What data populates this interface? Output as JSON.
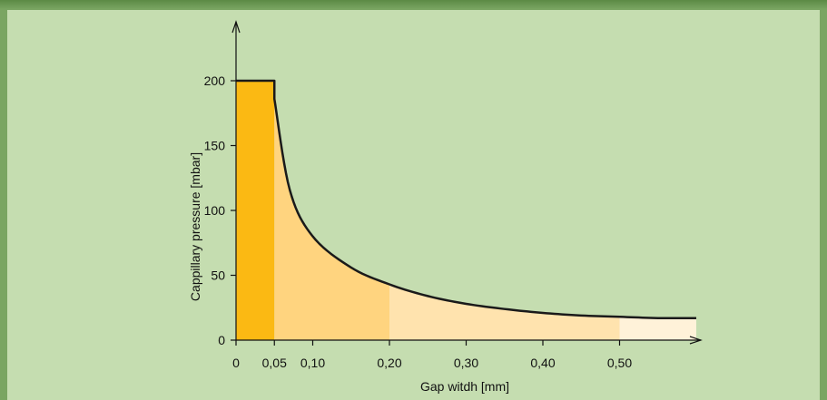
{
  "chart_data": {
    "type": "area",
    "title": "",
    "xlabel": "Gap witdh [mm]",
    "ylabel": "Cappillary pressure [mbar]",
    "xlim": [
      0,
      0.6
    ],
    "ylim": [
      0,
      200
    ],
    "x_ticks": [
      {
        "value": 0,
        "label": "0"
      },
      {
        "value": 0.05,
        "label": "0,05"
      },
      {
        "value": 0.1,
        "label": "0,10"
      },
      {
        "value": 0.2,
        "label": "0,20"
      },
      {
        "value": 0.3,
        "label": "0,30"
      },
      {
        "value": 0.4,
        "label": "0,40"
      },
      {
        "value": 0.5,
        "label": "0,50"
      }
    ],
    "y_ticks": [
      {
        "value": 0,
        "label": "0"
      },
      {
        "value": 50,
        "label": "50"
      },
      {
        "value": 100,
        "label": "100"
      },
      {
        "value": 150,
        "label": "150"
      },
      {
        "value": 200,
        "label": "200"
      }
    ],
    "points": [
      {
        "x": 0,
        "y": 200
      },
      {
        "x": 0.05,
        "y": 200
      },
      {
        "x": 0.05,
        "y": 186
      },
      {
        "x": 0.07,
        "y": 116
      },
      {
        "x": 0.1,
        "y": 80
      },
      {
        "x": 0.15,
        "y": 56
      },
      {
        "x": 0.2,
        "y": 43
      },
      {
        "x": 0.25,
        "y": 34
      },
      {
        "x": 0.3,
        "y": 28
      },
      {
        "x": 0.35,
        "y": 24
      },
      {
        "x": 0.4,
        "y": 21
      },
      {
        "x": 0.45,
        "y": 19
      },
      {
        "x": 0.5,
        "y": 18
      },
      {
        "x": 0.55,
        "y": 17
      },
      {
        "x": 0.6,
        "y": 17
      }
    ],
    "bands": [
      {
        "from": 0,
        "to": 0.05,
        "color": "#fbb913"
      },
      {
        "from": 0.05,
        "to": 0.2,
        "color": "#ffd47f"
      },
      {
        "from": 0.2,
        "to": 0.5,
        "color": "#ffe3ae"
      },
      {
        "from": 0.5,
        "to": 0.6,
        "color": "#fff2d9"
      }
    ],
    "line_color": "#1a1a1a",
    "grid": false,
    "legend": false
  }
}
